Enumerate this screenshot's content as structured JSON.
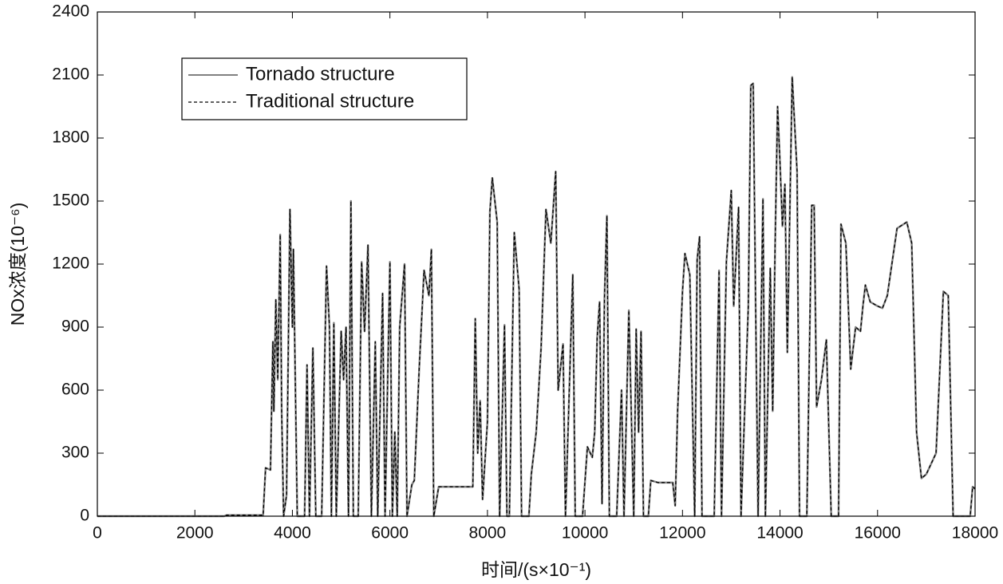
{
  "chart_data": {
    "type": "line",
    "xlabel": "时间/(s×10⁻¹)",
    "ylabel": "NOx浓度(10⁻⁶)",
    "xlim": [
      0,
      18000
    ],
    "ylim": [
      0,
      2400
    ],
    "xticks": [
      0,
      2000,
      4000,
      6000,
      8000,
      10000,
      12000,
      14000,
      16000,
      18000
    ],
    "yticks": [
      0,
      300,
      600,
      900,
      1200,
      1500,
      1800,
      2100,
      2400
    ],
    "legend": "upper left",
    "x": [
      0,
      2600,
      2650,
      3400,
      3450,
      3550,
      3600,
      3620,
      3660,
      3700,
      3750,
      3780,
      3820,
      3880,
      3950,
      4000,
      4020,
      4100,
      4250,
      4300,
      4350,
      4420,
      4480,
      4600,
      4700,
      4760,
      4800,
      4850,
      4900,
      5000,
      5050,
      5100,
      5150,
      5200,
      5250,
      5350,
      5420,
      5480,
      5550,
      5620,
      5700,
      5750,
      5850,
      5900,
      6000,
      6050,
      6100,
      6150,
      6200,
      6300,
      6350,
      6450,
      6500,
      6600,
      6700,
      6800,
      6850,
      6900,
      7000,
      7700,
      7750,
      7800,
      7850,
      7900,
      8000,
      8050,
      8100,
      8200,
      8250,
      8350,
      8400,
      8450,
      8550,
      8650,
      8700,
      8850,
      8900,
      9000,
      9100,
      9200,
      9300,
      9400,
      9450,
      9550,
      9600,
      9750,
      9800,
      9950,
      10050,
      10150,
      10200,
      10250,
      10300,
      10350,
      10400,
      10450,
      10500,
      10650,
      10750,
      10800,
      10900,
      11000,
      11050,
      11100,
      11150,
      11200,
      11300,
      11350,
      11500,
      11800,
      11850,
      11900,
      12000,
      12050,
      12150,
      12250,
      12300,
      12350,
      12400,
      12650,
      12750,
      12800,
      12900,
      13000,
      13050,
      13150,
      13200,
      13350,
      13400,
      13450,
      13500,
      13550,
      13650,
      13700,
      13800,
      13850,
      13900,
      13950,
      14000,
      14050,
      14100,
      14150,
      14250,
      14350,
      14400,
      14550,
      14650,
      14700,
      14750,
      14850,
      14950,
      15050,
      15200,
      15250,
      15350,
      15450,
      15550,
      15650,
      15700,
      15750,
      15850,
      16000,
      16100,
      16200,
      16400,
      16600,
      16700,
      16800,
      16900,
      17000,
      17200,
      17350,
      17450,
      17550,
      17900,
      17950,
      18000
    ],
    "series": [
      {
        "name": "Tornado structure",
        "color": "#808080",
        "style": "solid",
        "values": [
          0,
          0,
          5,
          5,
          230,
          220,
          830,
          500,
          1030,
          650,
          1340,
          500,
          0,
          100,
          1460,
          900,
          1270,
          0,
          0,
          720,
          0,
          800,
          0,
          0,
          1190,
          900,
          0,
          920,
          0,
          880,
          650,
          900,
          0,
          1500,
          0,
          0,
          1210,
          880,
          1290,
          0,
          830,
          0,
          1060,
          0,
          1210,
          0,
          400,
          0,
          900,
          1200,
          0,
          150,
          170,
          700,
          1170,
          1050,
          1270,
          0,
          140,
          140,
          940,
          300,
          550,
          80,
          450,
          1450,
          1610,
          1400,
          0,
          910,
          0,
          0,
          1350,
          1080,
          0,
          0,
          200,
          400,
          800,
          1460,
          1300,
          1640,
          600,
          820,
          0,
          1150,
          0,
          0,
          330,
          280,
          400,
          850,
          1020,
          60,
          1040,
          1430,
          0,
          0,
          600,
          0,
          980,
          0,
          890,
          400,
          880,
          0,
          0,
          170,
          160,
          160,
          50,
          500,
          1070,
          1250,
          1150,
          0,
          1220,
          1330,
          0,
          0,
          1170,
          0,
          1210,
          1550,
          1000,
          1470,
          0,
          1000,
          2050,
          2060,
          1000,
          0,
          1510,
          0,
          1180,
          500,
          1300,
          1950,
          1680,
          1380,
          1580,
          780,
          2090,
          1640,
          0,
          0,
          1480,
          1480,
          520,
          650,
          840,
          0,
          0,
          1390,
          1300,
          700,
          900,
          880,
          1000,
          1100,
          1020,
          1000,
          990,
          1050,
          1370,
          1400,
          1300,
          400,
          180,
          200,
          300,
          1070,
          1050,
          0,
          0,
          140,
          130
        ]
      },
      {
        "name": "Traditional structure",
        "color": "#000000",
        "style": "dashed",
        "values": [
          0,
          0,
          5,
          5,
          230,
          220,
          830,
          500,
          1030,
          650,
          1340,
          500,
          0,
          100,
          1460,
          900,
          1270,
          0,
          0,
          720,
          0,
          800,
          0,
          0,
          1190,
          900,
          0,
          920,
          0,
          880,
          650,
          900,
          0,
          1500,
          0,
          0,
          1210,
          880,
          1290,
          0,
          830,
          0,
          1060,
          0,
          1210,
          0,
          400,
          0,
          900,
          1200,
          0,
          150,
          170,
          700,
          1170,
          1050,
          1270,
          0,
          140,
          140,
          940,
          300,
          550,
          80,
          450,
          1450,
          1610,
          1400,
          0,
          910,
          0,
          0,
          1350,
          1080,
          0,
          0,
          200,
          400,
          800,
          1460,
          1300,
          1640,
          600,
          820,
          0,
          1150,
          0,
          0,
          330,
          280,
          400,
          850,
          1020,
          60,
          1040,
          1430,
          0,
          0,
          600,
          0,
          980,
          0,
          890,
          400,
          880,
          0,
          0,
          170,
          160,
          160,
          50,
          500,
          1070,
          1250,
          1150,
          0,
          1220,
          1330,
          0,
          0,
          1170,
          0,
          1210,
          1550,
          1000,
          1470,
          0,
          1000,
          2050,
          2060,
          1000,
          0,
          1510,
          0,
          1180,
          500,
          1300,
          1950,
          1680,
          1380,
          1580,
          780,
          2090,
          1640,
          0,
          0,
          1480,
          1480,
          520,
          650,
          840,
          0,
          0,
          1390,
          1300,
          700,
          900,
          880,
          1000,
          1100,
          1020,
          1000,
          990,
          1050,
          1370,
          1400,
          1300,
          400,
          180,
          200,
          300,
          1070,
          1050,
          0,
          0,
          140,
          130
        ]
      }
    ]
  }
}
